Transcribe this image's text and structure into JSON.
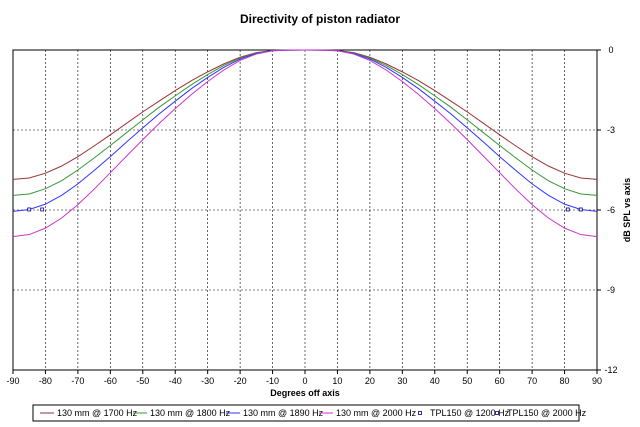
{
  "chart_data": {
    "type": "line",
    "title": "Directivity of piston radiator",
    "xlabel": "Degrees off axis",
    "ylabel": "dB SPL vs axis",
    "xlim": [
      -90,
      90
    ],
    "ylim": [
      -12,
      0
    ],
    "x_ticks": [
      -90,
      -80,
      -70,
      -60,
      -50,
      -40,
      -30,
      -20,
      -10,
      0,
      10,
      20,
      30,
      40,
      50,
      60,
      70,
      80,
      90
    ],
    "y_ticks": [
      0,
      -3,
      -6,
      -9,
      -12
    ],
    "y_axis_side": "right",
    "grid": "dashed",
    "legend_position": "bottom",
    "x": [
      -90,
      -85,
      -80,
      -75,
      -70,
      -65,
      -60,
      -55,
      -50,
      -45,
      -40,
      -35,
      -30,
      -25,
      -20,
      -15,
      -10,
      -5,
      0,
      5,
      10,
      15,
      20,
      25,
      30,
      35,
      40,
      45,
      50,
      55,
      60,
      65,
      70,
      75,
      80,
      85,
      90
    ],
    "series": [
      {
        "name": "130 mm @ 1700 Hz",
        "color": "#993333",
        "style": "line",
        "values": [
          -4.85,
          -4.8,
          -4.62,
          -4.35,
          -4.0,
          -3.6,
          -3.18,
          -2.75,
          -2.32,
          -1.92,
          -1.52,
          -1.15,
          -0.82,
          -0.52,
          -0.27,
          -0.1,
          -0.02,
          -0.005,
          0,
          -0.005,
          -0.02,
          -0.1,
          -0.27,
          -0.52,
          -0.82,
          -1.15,
          -1.52,
          -1.92,
          -2.32,
          -2.75,
          -3.18,
          -3.6,
          -4.0,
          -4.35,
          -4.62,
          -4.8,
          -4.85
        ]
      },
      {
        "name": "130 mm @ 1800 Hz",
        "color": "#339933",
        "style": "line",
        "values": [
          -5.45,
          -5.4,
          -5.2,
          -4.9,
          -4.5,
          -4.05,
          -3.58,
          -3.1,
          -2.62,
          -2.15,
          -1.72,
          -1.3,
          -0.92,
          -0.58,
          -0.3,
          -0.11,
          -0.02,
          -0.005,
          0,
          -0.005,
          -0.02,
          -0.11,
          -0.3,
          -0.58,
          -0.92,
          -1.3,
          -1.72,
          -2.15,
          -2.62,
          -3.1,
          -3.58,
          -4.05,
          -4.5,
          -4.9,
          -5.2,
          -5.4,
          -5.45
        ]
      },
      {
        "name": "130 mm @ 1890 Hz",
        "color": "#3333ff",
        "style": "line",
        "values": [
          -6.05,
          -5.98,
          -5.78,
          -5.45,
          -5.02,
          -4.52,
          -4.0,
          -3.45,
          -2.92,
          -2.4,
          -1.92,
          -1.45,
          -1.03,
          -0.65,
          -0.34,
          -0.13,
          -0.03,
          -0.005,
          0,
          -0.005,
          -0.03,
          -0.13,
          -0.34,
          -0.65,
          -1.03,
          -1.45,
          -1.92,
          -2.4,
          -2.92,
          -3.45,
          -4.0,
          -4.52,
          -5.02,
          -5.45,
          -5.78,
          -5.98,
          -6.05
        ]
      },
      {
        "name": "130 mm @ 2000 Hz",
        "color": "#cc33cc",
        "style": "line",
        "values": [
          -7.0,
          -6.92,
          -6.68,
          -6.3,
          -5.8,
          -5.22,
          -4.6,
          -3.98,
          -3.36,
          -2.76,
          -2.2,
          -1.67,
          -1.18,
          -0.75,
          -0.39,
          -0.15,
          -0.03,
          -0.005,
          0,
          -0.005,
          -0.03,
          -0.15,
          -0.39,
          -0.75,
          -1.18,
          -1.67,
          -2.2,
          -2.76,
          -3.36,
          -3.98,
          -4.6,
          -5.22,
          -5.8,
          -6.3,
          -6.68,
          -6.92,
          -7.0
        ]
      },
      {
        "name": "TPL150 @ 1200 Hz",
        "color": "#000080",
        "style": "marker",
        "points": [
          [
            -85,
            -5.98
          ],
          [
            -81,
            -5.98
          ],
          [
            81,
            -5.98
          ],
          [
            85,
            -5.98
          ]
        ]
      },
      {
        "name": "TPL150 @ 2000 Hz",
        "color": "#000080",
        "style": "marker",
        "points": []
      }
    ]
  }
}
